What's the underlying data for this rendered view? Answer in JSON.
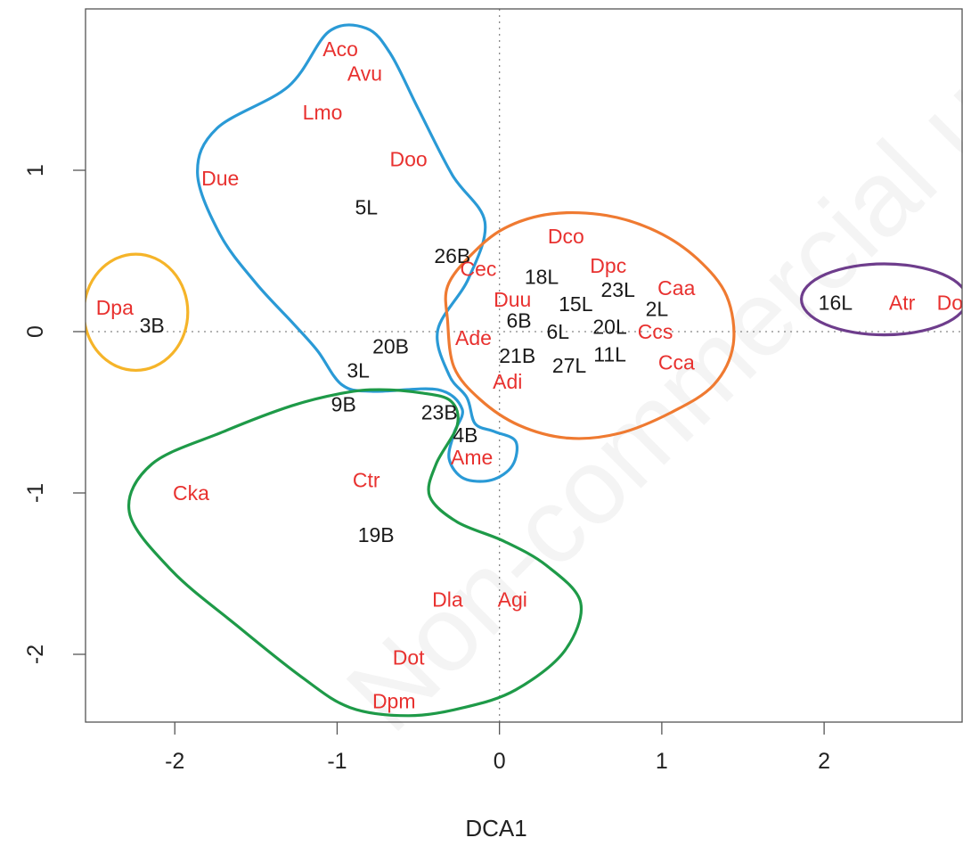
{
  "watermark_text": "Non-commercial use",
  "chart_data": {
    "type": "scatter",
    "title": "",
    "xlabel": "DCA1",
    "ylabel": "",
    "xlim": [
      -2.55,
      2.85
    ],
    "ylim": [
      -2.42,
      2.0
    ],
    "x_ticks": [
      -2,
      -1,
      0,
      1,
      2
    ],
    "y_ticks": [
      -2,
      -1,
      0,
      1
    ],
    "reference_lines": {
      "x": 0,
      "y": 0,
      "style": "dotted"
    },
    "colors": {
      "species": "#e8312f",
      "site": "#1a1a1a",
      "blue_cluster": "#2a9ad6",
      "orange_cluster": "#ef7a31",
      "green_cluster": "#1e9a48",
      "yellow_cluster": "#f5b429",
      "purple_cluster": "#6e3d8c"
    },
    "points": [
      {
        "label": "Aco",
        "x": -0.98,
        "y": 1.75,
        "kind": "species"
      },
      {
        "label": "Avu",
        "x": -0.83,
        "y": 1.6,
        "kind": "species"
      },
      {
        "label": "Lmo",
        "x": -1.09,
        "y": 1.36,
        "kind": "species"
      },
      {
        "label": "Doo",
        "x": -0.56,
        "y": 1.07,
        "kind": "species"
      },
      {
        "label": "Due",
        "x": -1.72,
        "y": 0.95,
        "kind": "species"
      },
      {
        "label": "5L",
        "x": -0.82,
        "y": 0.77,
        "kind": "site"
      },
      {
        "label": "26B",
        "x": -0.29,
        "y": 0.47,
        "kind": "site"
      },
      {
        "label": "Dco",
        "x": 0.41,
        "y": 0.59,
        "kind": "species"
      },
      {
        "label": "Cec",
        "x": -0.13,
        "y": 0.39,
        "kind": "species"
      },
      {
        "label": "18L",
        "x": 0.26,
        "y": 0.34,
        "kind": "site"
      },
      {
        "label": "Dpc",
        "x": 0.67,
        "y": 0.41,
        "kind": "species"
      },
      {
        "label": "23L",
        "x": 0.73,
        "y": 0.26,
        "kind": "site"
      },
      {
        "label": "Caa",
        "x": 1.09,
        "y": 0.27,
        "kind": "species"
      },
      {
        "label": "Duu",
        "x": 0.08,
        "y": 0.2,
        "kind": "species"
      },
      {
        "label": "15L",
        "x": 0.47,
        "y": 0.17,
        "kind": "site"
      },
      {
        "label": "2L",
        "x": 0.97,
        "y": 0.14,
        "kind": "site"
      },
      {
        "label": "6B",
        "x": 0.12,
        "y": 0.07,
        "kind": "site"
      },
      {
        "label": "6L",
        "x": 0.36,
        "y": 0.0,
        "kind": "site"
      },
      {
        "label": "20L",
        "x": 0.68,
        "y": 0.03,
        "kind": "site"
      },
      {
        "label": "Ccs",
        "x": 0.96,
        "y": 0.0,
        "kind": "species"
      },
      {
        "label": "Ade",
        "x": -0.16,
        "y": -0.04,
        "kind": "species"
      },
      {
        "label": "21B",
        "x": 0.11,
        "y": -0.15,
        "kind": "site"
      },
      {
        "label": "27L",
        "x": 0.43,
        "y": -0.21,
        "kind": "site"
      },
      {
        "label": "11L",
        "x": 0.68,
        "y": -0.14,
        "kind": "site"
      },
      {
        "label": "Cca",
        "x": 1.09,
        "y": -0.19,
        "kind": "species"
      },
      {
        "label": "Adi",
        "x": 0.05,
        "y": -0.31,
        "kind": "species"
      },
      {
        "label": "16L",
        "x": 2.07,
        "y": 0.18,
        "kind": "site"
      },
      {
        "label": "Atr",
        "x": 2.48,
        "y": 0.18,
        "kind": "species"
      },
      {
        "label": "Dob",
        "x": 2.81,
        "y": 0.18,
        "kind": "species"
      },
      {
        "label": "Dpa",
        "x": -2.37,
        "y": 0.15,
        "kind": "species"
      },
      {
        "label": "3B",
        "x": -2.14,
        "y": 0.04,
        "kind": "site"
      },
      {
        "label": "20B",
        "x": -0.67,
        "y": -0.09,
        "kind": "site"
      },
      {
        "label": "3L",
        "x": -0.87,
        "y": -0.24,
        "kind": "site"
      },
      {
        "label": "9B",
        "x": -0.96,
        "y": -0.45,
        "kind": "site"
      },
      {
        "label": "23B",
        "x": -0.37,
        "y": -0.5,
        "kind": "site"
      },
      {
        "label": "4B",
        "x": -0.21,
        "y": -0.64,
        "kind": "site"
      },
      {
        "label": "Ame",
        "x": -0.17,
        "y": -0.78,
        "kind": "species"
      },
      {
        "label": "Ctr",
        "x": -0.82,
        "y": -0.92,
        "kind": "species"
      },
      {
        "label": "Cka",
        "x": -1.9,
        "y": -1.0,
        "kind": "species"
      },
      {
        "label": "19B",
        "x": -0.76,
        "y": -1.26,
        "kind": "site"
      },
      {
        "label": "Dla",
        "x": -0.32,
        "y": -1.66,
        "kind": "species"
      },
      {
        "label": "Agi",
        "x": 0.08,
        "y": -1.66,
        "kind": "species"
      },
      {
        "label": "Dot",
        "x": -0.56,
        "y": -2.02,
        "kind": "species"
      },
      {
        "label": "Dpm",
        "x": -0.65,
        "y": -2.29,
        "kind": "species"
      }
    ],
    "hulls": [
      {
        "color_key": "blue_cluster",
        "path": [
          [
            -1.3,
            1.52
          ],
          [
            -1.05,
            1.86
          ],
          [
            -0.82,
            1.88
          ],
          [
            -0.67,
            1.72
          ],
          [
            -0.5,
            1.38
          ],
          [
            -0.29,
            0.97
          ],
          [
            -0.09,
            0.68
          ],
          [
            -0.19,
            0.33
          ],
          [
            -0.38,
            0.01
          ],
          [
            -0.31,
            -0.27
          ],
          [
            -0.2,
            -0.41
          ],
          [
            -0.15,
            -0.57
          ],
          [
            -0.03,
            -0.62
          ],
          [
            0.1,
            -0.68
          ],
          [
            0.08,
            -0.83
          ],
          [
            -0.05,
            -0.92
          ],
          [
            -0.22,
            -0.91
          ],
          [
            -0.31,
            -0.79
          ],
          [
            -0.28,
            -0.63
          ],
          [
            -0.23,
            -0.48
          ],
          [
            -0.38,
            -0.36
          ],
          [
            -0.78,
            -0.37
          ],
          [
            -0.97,
            -0.33
          ],
          [
            -1.12,
            -0.12
          ],
          [
            -1.27,
            0.05
          ],
          [
            -1.5,
            0.3
          ],
          [
            -1.72,
            0.6
          ],
          [
            -1.86,
            0.98
          ],
          [
            -1.74,
            1.26
          ]
        ]
      },
      {
        "color_key": "orange_cluster",
        "path": [
          [
            -0.32,
            0.07
          ],
          [
            -0.28,
            -0.22
          ],
          [
            -0.12,
            -0.42
          ],
          [
            0.12,
            -0.58
          ],
          [
            0.42,
            -0.66
          ],
          [
            0.74,
            -0.63
          ],
          [
            1.06,
            -0.5
          ],
          [
            1.32,
            -0.33
          ],
          [
            1.44,
            -0.08
          ],
          [
            1.4,
            0.22
          ],
          [
            1.22,
            0.45
          ],
          [
            0.97,
            0.62
          ],
          [
            0.66,
            0.72
          ],
          [
            0.32,
            0.73
          ],
          [
            0.03,
            0.64
          ],
          [
            -0.18,
            0.47
          ],
          [
            -0.32,
            0.28
          ]
        ]
      },
      {
        "color_key": "green_cluster",
        "path": [
          [
            -0.48,
            -0.38
          ],
          [
            -0.3,
            -0.43
          ],
          [
            -0.26,
            -0.58
          ],
          [
            -0.39,
            -0.82
          ],
          [
            -0.43,
            -1.02
          ],
          [
            -0.26,
            -1.18
          ],
          [
            0.03,
            -1.3
          ],
          [
            0.29,
            -1.45
          ],
          [
            0.5,
            -1.68
          ],
          [
            0.4,
            -1.98
          ],
          [
            0.1,
            -2.22
          ],
          [
            -0.22,
            -2.33
          ],
          [
            -0.56,
            -2.38
          ],
          [
            -0.92,
            -2.33
          ],
          [
            -1.22,
            -2.14
          ],
          [
            -1.62,
            -1.82
          ],
          [
            -2.02,
            -1.48
          ],
          [
            -2.28,
            -1.12
          ],
          [
            -2.14,
            -0.82
          ],
          [
            -1.7,
            -0.62
          ],
          [
            -1.28,
            -0.46
          ],
          [
            -0.96,
            -0.38
          ],
          [
            -0.74,
            -0.36
          ]
        ]
      },
      {
        "color_key": "yellow_cluster",
        "ellipse": {
          "cx": -2.24,
          "cy": 0.12,
          "rx": 0.32,
          "ry": 0.36
        }
      },
      {
        "color_key": "purple_cluster",
        "ellipse": {
          "cx": 2.37,
          "cy": 0.2,
          "rx": 0.51,
          "ry": 0.22
        }
      }
    ]
  }
}
